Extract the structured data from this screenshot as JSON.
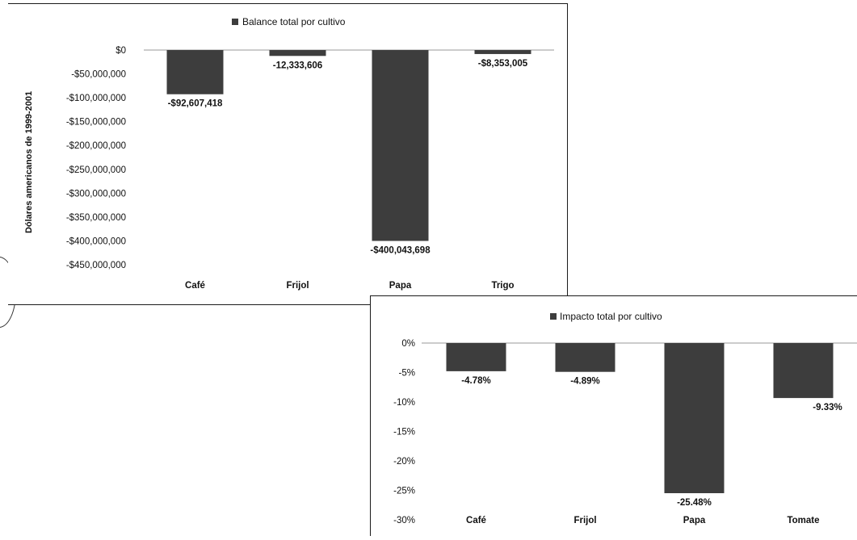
{
  "colors": {
    "bar": "#3d3d3d",
    "axis": "#999999",
    "frame": "#1a1a1a"
  },
  "chart_data": [
    {
      "type": "bar",
      "title": "",
      "legend": {
        "label": "Balance total por cultivo",
        "placement": "top-center"
      },
      "ylabel": "Dólares americanos de 1999-2001",
      "xlabel": "",
      "categories": [
        "Café",
        "Frijol",
        "Papa",
        "Trigo"
      ],
      "series": [
        {
          "name": "Balance total por cultivo",
          "values": [
            -92607418,
            -12333606,
            -400043698,
            -8353005
          ]
        }
      ],
      "data_labels": [
        "-$92,607,418",
        "-12,333,606",
        "-$400,043,698",
        "-$8,353,005"
      ],
      "ylim": [
        -450000000,
        0
      ],
      "yticks": [
        "$0",
        "-$50,000,000",
        "-$100,000,000",
        "-$150,000,000",
        "-$200,000,000",
        "-$250,000,000",
        "-$300,000,000",
        "-$350,000,000",
        "-$400,000,000",
        "-$450,000,000"
      ],
      "grid": false
    },
    {
      "type": "bar",
      "title": "",
      "legend": {
        "label": "Impacto total por cultivo",
        "placement": "top-center"
      },
      "ylabel": "",
      "xlabel": "",
      "categories": [
        "Café",
        "Frijol",
        "Papa",
        "Tomate"
      ],
      "series": [
        {
          "name": "Impacto total por cultivo",
          "values": [
            -4.78,
            -4.89,
            -25.48,
            -9.33
          ]
        }
      ],
      "data_labels": [
        "-4.78%",
        "-4.89%",
        "-25.48%",
        "-9.33%"
      ],
      "ylim": [
        -30,
        0
      ],
      "yticks": [
        "0%",
        "-5%",
        "-10%",
        "-15%",
        "-20%",
        "-25%",
        "-30%"
      ],
      "grid": false
    }
  ]
}
